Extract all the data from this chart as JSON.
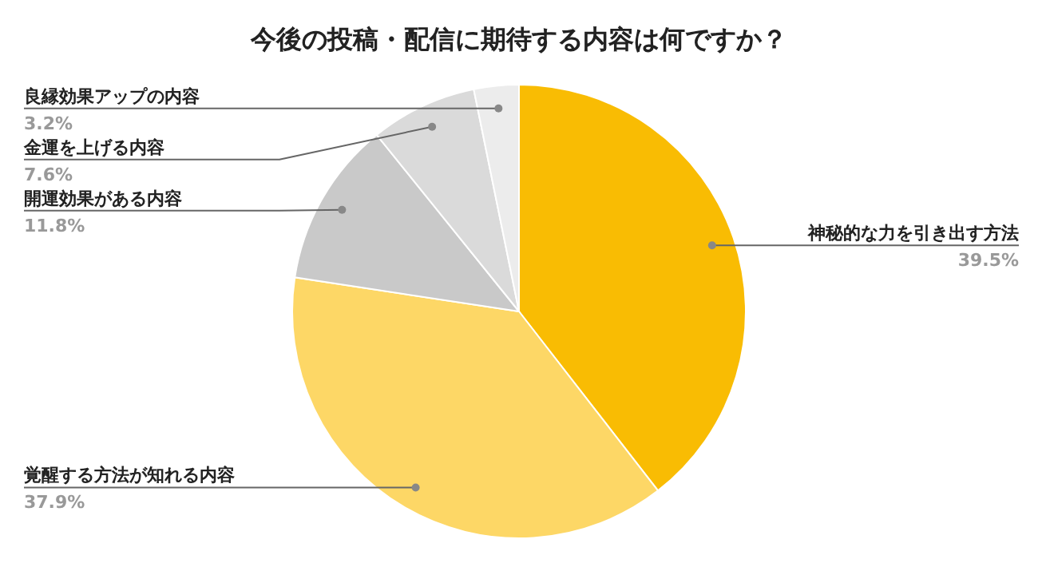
{
  "chart_data": {
    "type": "pie",
    "title": "今後の投稿・配信に期待する内容は何ですか？",
    "categories": [
      "神秘的な力を引き出す方法",
      "覚醒する方法が知れる内容",
      "開運効果がある内容",
      "金運を上げる内容",
      "良縁効果アップの内容"
    ],
    "values": [
      39.5,
      37.9,
      11.8,
      7.6,
      3.2
    ],
    "colors": [
      "#f9bc03",
      "#fdd766",
      "#c9c9c9",
      "#dadada",
      "#ececec"
    ],
    "value_labels": [
      "39.5%",
      "37.9%",
      "11.8%",
      "7.6%",
      "3.2%"
    ],
    "legend": false
  }
}
